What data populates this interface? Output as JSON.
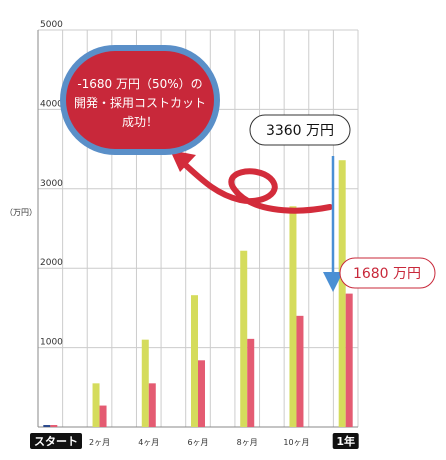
{
  "chart_data": {
    "type": "bar",
    "title": "",
    "xlabel": "",
    "ylabel": "（万円）",
    "ylim": [
      0,
      5000
    ],
    "yticks": [
      1000,
      2000,
      3000,
      4000,
      5000
    ],
    "grid": true,
    "categories": [
      "スタート",
      "",
      "2ヶ月",
      "",
      "4ヶ月",
      "",
      "6ヶ月",
      "",
      "8ヶ月",
      "",
      "10ヶ月",
      "",
      "1年"
    ],
    "series": [
      {
        "values": [
          25,
          0,
          550,
          0,
          1100,
          0,
          1660,
          0,
          2220,
          0,
          2780,
          0,
          3360
        ]
      },
      {
        "values": [
          25,
          0,
          270,
          0,
          550,
          0,
          840,
          0,
          1110,
          0,
          1400,
          0,
          1680
        ]
      }
    ],
    "annotations": {
      "bubble_line1": "-1680 万円（50%）の",
      "bubble_line2": "開発・採用コストカット",
      "bubble_line3": "成功！",
      "callout_top": "3360 万円",
      "callout_bottom": "1680 万円"
    },
    "colors": {
      "series1": "#d5dc5c",
      "series2": "#e45b72",
      "start_series1": "#2b4a8c",
      "start_series2": "#e45b72",
      "grid": "#cccccc",
      "bubble_fill": "#c8283a",
      "bubble_border": "#5a8fc8",
      "arrow_red": "#d32c3b",
      "arrow_blue": "#4a8fd4",
      "label_badge": "#111111"
    }
  }
}
